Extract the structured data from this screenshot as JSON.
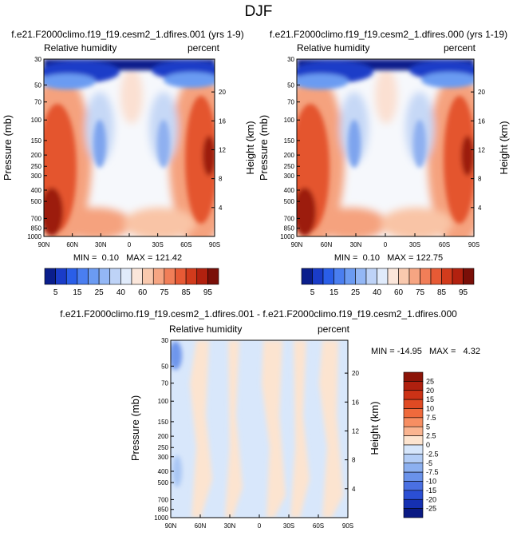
{
  "page_title": "DJF",
  "chart_data": [
    {
      "type": "contour",
      "title": "f.e21.F2000climo.f19_f19.cesm2_1.dfires.001 (yrs 1-9)",
      "left_label": "Relative humidity",
      "right_label": "percent",
      "ylabel": "Pressure (mb)",
      "ylabel_right": "Height (km)",
      "x_ticks": [
        "90N",
        "60N",
        "30N",
        "0",
        "30S",
        "60S",
        "90S"
      ],
      "y_ticks": [
        "1000",
        "850",
        "700",
        "500",
        "400",
        "300",
        "250",
        "200",
        "150",
        "100",
        "70",
        "50",
        "30"
      ],
      "height_ticks": [
        "4",
        "8",
        "12",
        "16",
        "20"
      ],
      "stats_text": "MIN =  0.10   MAX = 121.42",
      "colorbar": {
        "labels": [
          "5",
          "15",
          "25",
          "40",
          "60",
          "75",
          "85",
          "95"
        ],
        "colors": [
          "#0a1e8c",
          "#1a3cc8",
          "#2a5ee8",
          "#4a7ef0",
          "#6b9bf2",
          "#93b7f5",
          "#bed3f7",
          "#e0ebfb",
          "#fbe6da",
          "#f9c9ae",
          "#f6a582",
          "#f17e58",
          "#e75a35",
          "#d23b1c",
          "#b2210f",
          "#7a0f08"
        ]
      }
    },
    {
      "type": "contour",
      "title": "f.e21.F2000climo.f19_f19.cesm2_1.dfires.000 (yrs 1-19)",
      "left_label": "Relative humidity",
      "right_label": "percent",
      "ylabel": "Pressure (mb)",
      "ylabel_right": "Height (km)",
      "x_ticks": [
        "90N",
        "60N",
        "30N",
        "0",
        "30S",
        "60S",
        "90S"
      ],
      "y_ticks": [
        "1000",
        "850",
        "700",
        "500",
        "400",
        "300",
        "250",
        "200",
        "150",
        "100",
        "70",
        "50",
        "30"
      ],
      "height_ticks": [
        "4",
        "8",
        "12",
        "16",
        "20"
      ],
      "stats_text": "MIN =  0.10   MAX = 122.75",
      "colorbar": {
        "labels": [
          "5",
          "15",
          "25",
          "40",
          "60",
          "75",
          "85",
          "95"
        ],
        "colors": [
          "#0a1e8c",
          "#1a3cc8",
          "#2a5ee8",
          "#4a7ef0",
          "#6b9bf2",
          "#93b7f5",
          "#bed3f7",
          "#e0ebfb",
          "#fbe6da",
          "#f9c9ae",
          "#f6a582",
          "#f17e58",
          "#e75a35",
          "#d23b1c",
          "#b2210f",
          "#7a0f08"
        ]
      }
    },
    {
      "type": "contour",
      "title": "f.e21.F2000climo.f19_f19.cesm2_1.dfires.001 - f.e21.F2000climo.f19_f19.cesm2_1.dfires.000",
      "left_label": "Relative humidity",
      "right_label": "percent",
      "ylabel": "Pressure (mb)",
      "ylabel_right": "Height (km)",
      "x_ticks": [
        "90N",
        "60N",
        "30N",
        "0",
        "30S",
        "60S",
        "90S"
      ],
      "y_ticks": [
        "1000",
        "850",
        "700",
        "500",
        "400",
        "300",
        "250",
        "200",
        "150",
        "100",
        "70",
        "50",
        "30"
      ],
      "height_ticks": [
        "4",
        "8",
        "12",
        "16",
        "20"
      ],
      "stats_text": "MIN = -14.95   MAX =   4.32",
      "colorbar": {
        "labels": [
          "25",
          "20",
          "15",
          "10",
          "7.5",
          "5",
          "2.5",
          "0",
          "-2.5",
          "-5",
          "-7.5",
          "-10",
          "-15",
          "-20",
          "-25"
        ],
        "colors": [
          "#8c1408",
          "#b0200f",
          "#cc3216",
          "#e04a23",
          "#ef6a3c",
          "#f78e62",
          "#fab490",
          "#fde4cf",
          "#d6e6fb",
          "#b3cdf6",
          "#8cb0f0",
          "#6a92ea",
          "#4a70e2",
          "#2b4fd4",
          "#1530b2",
          "#0a1a84"
        ]
      }
    }
  ]
}
